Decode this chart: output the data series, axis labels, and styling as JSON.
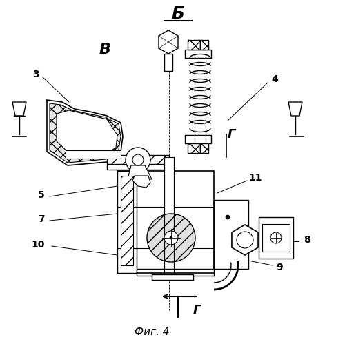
{
  "bg_color": "#ffffff",
  "line_color": "#000000",
  "fig_width": 5.0,
  "fig_height": 4.99,
  "dpi": 100,
  "label_B": "Б",
  "label_V": "В",
  "label_G": "Г",
  "caption": "Фиг. 4",
  "numbers": [
    "3",
    "4",
    "5",
    "7",
    "8",
    "9",
    "10",
    "11"
  ]
}
